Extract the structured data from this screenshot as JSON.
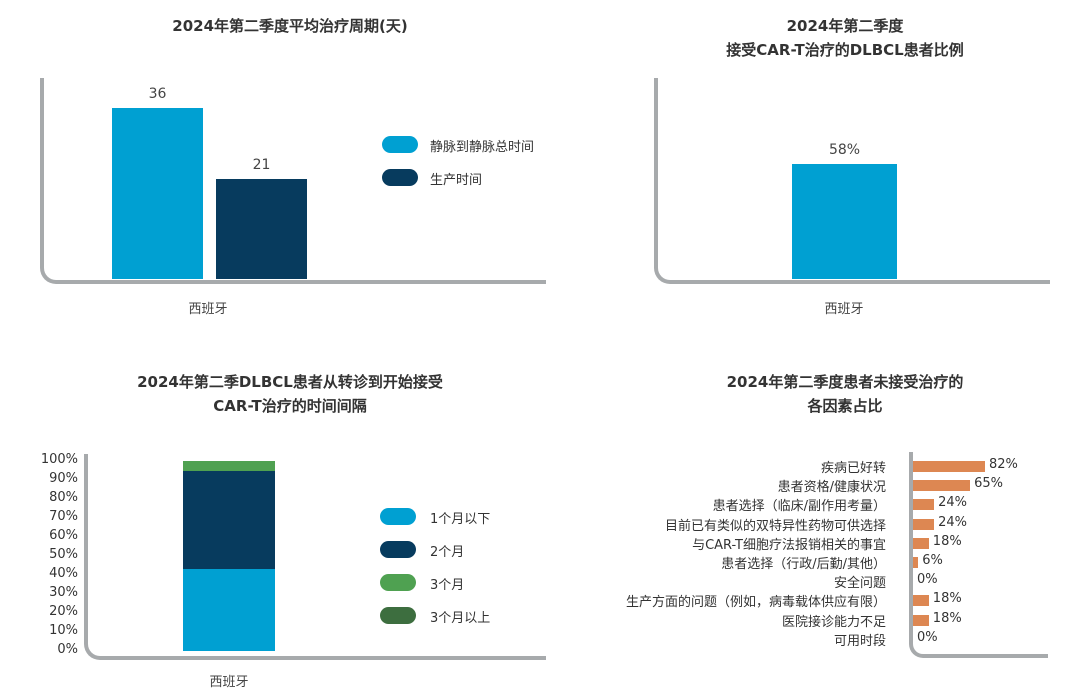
{
  "colors": {
    "iv": "#00a0d2",
    "production": "#073b5e",
    "light_blue": "#00a0d2",
    "dark_blue": "#073b5e",
    "green": "#4fa151",
    "dark_green": "#3d6e3f",
    "orange": "#dd8752",
    "axis": "#a7aaac"
  },
  "chart_data": [
    {
      "type": "bar",
      "title": "2024年第二季度平均治疗周期(天)",
      "categories": [
        "西班牙"
      ],
      "series": [
        {
          "name": "静脉到静脉总时间",
          "values": [
            36
          ]
        },
        {
          "name": "生产时间",
          "values": [
            21
          ]
        }
      ],
      "ylim": [
        0,
        42
      ],
      "legend": "right"
    },
    {
      "type": "bar",
      "title_lines": [
        "2024年第二季度",
        "接受CAR-T治疗的DLBCL患者比例"
      ],
      "categories": [
        "西班牙"
      ],
      "values": [
        58
      ],
      "value_labels": [
        "58%"
      ],
      "ylim": [
        0,
        100
      ]
    },
    {
      "type": "bar",
      "stacked": true,
      "title_lines": [
        "2024年第二季DLBCL患者从转诊到开始接受",
        "CAR-T治疗的时间间隔"
      ],
      "categories": [
        "西班牙"
      ],
      "y_ticks": [
        "100%",
        "90%",
        "80%",
        "70%",
        "60%",
        "50%",
        "40%",
        "30%",
        "20%",
        "10%",
        "0%"
      ],
      "ylim": [
        0,
        100
      ],
      "series": [
        {
          "name": "1个月以下",
          "values": [
            43
          ]
        },
        {
          "name": "2个月",
          "values": [
            52
          ]
        },
        {
          "name": "3个月",
          "values": [
            5
          ]
        },
        {
          "name": "3个月以上",
          "values": [
            0
          ]
        }
      ],
      "legend": "right"
    },
    {
      "type": "bar",
      "orientation": "horizontal",
      "title_lines": [
        "2024年第二季度患者未接受治疗的",
        "各因素占比"
      ],
      "xlim": [
        0,
        100
      ],
      "categories": [
        "疾病已好转",
        "患者资格/健康状况",
        "患者选择（临床/副作用考量）",
        "目前已有类似的双特异性药物可供选择",
        "与CAR-T细胞疗法报销相关的事宜",
        "患者选择（行政/后勤/其他）",
        "安全问题",
        "生产方面的问题（例如，病毒载体供应有限）",
        "医院接诊能力不足",
        "可用时段"
      ],
      "values": [
        82,
        65,
        24,
        24,
        18,
        6,
        0,
        18,
        18,
        0
      ],
      "value_labels": [
        "82%",
        "65%",
        "24%",
        "24%",
        "18%",
        "6%",
        "0%",
        "18%",
        "18%",
        "0%"
      ]
    }
  ]
}
